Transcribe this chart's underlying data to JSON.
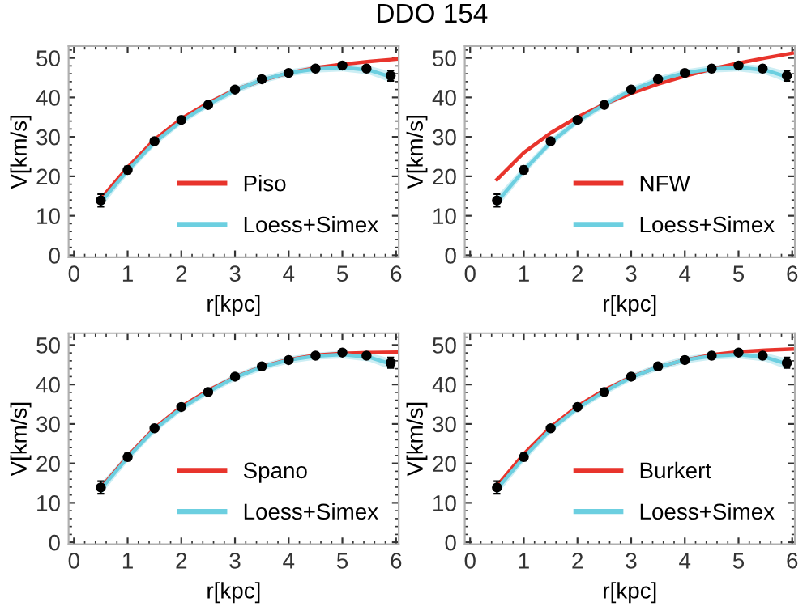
{
  "chart_data": [
    {
      "type": "line",
      "title": "DDO 154",
      "xlabel": "r[kpc]",
      "ylabel": "V[km/s]",
      "xlim": [
        -0.1,
        6.05
      ],
      "ylim": [
        -0.5,
        53
      ],
      "xticks": [
        0,
        1,
        2,
        3,
        4,
        5,
        6
      ],
      "yticks": [
        0,
        10,
        20,
        30,
        40,
        50
      ],
      "legend": "bottom right",
      "grid": false,
      "series": [
        {
          "name": "Piso",
          "color": "#e8342c",
          "x": [
            0.5,
            1,
            1.5,
            2,
            2.5,
            3,
            3.5,
            4,
            4.5,
            5,
            5.5,
            6
          ],
          "values": [
            14.3,
            22.3,
            29.3,
            34.6,
            38.6,
            41.9,
            44.3,
            46.2,
            47.5,
            48.4,
            49.1,
            49.7
          ]
        },
        {
          "type": "line",
          "name": "Loess+Simex",
          "color": "#6ccfe0",
          "x": [
            0.5,
            1,
            1.5,
            2,
            2.5,
            3,
            3.5,
            4,
            4.5,
            5,
            5.5,
            5.9
          ],
          "values": [
            13.5,
            21.5,
            28.6,
            34.0,
            38.2,
            41.8,
            44.4,
            46.2,
            47.2,
            47.6,
            46.9,
            45.2
          ],
          "lower": [
            12.0,
            20.4,
            27.6,
            33.1,
            37.3,
            40.9,
            43.5,
            45.3,
            46.3,
            46.6,
            45.8,
            43.8
          ],
          "upper": [
            15.0,
            22.6,
            29.6,
            34.9,
            39.1,
            42.7,
            45.3,
            47.1,
            48.1,
            48.6,
            48.0,
            46.6
          ]
        },
        {
          "type": "scatter",
          "color": "#000000",
          "marker": "circle",
          "x": [
            0.5,
            1,
            1.5,
            2,
            2.5,
            3,
            3.5,
            4,
            4.5,
            5,
            5.45,
            5.9
          ],
          "values": [
            13.9,
            21.6,
            28.9,
            34.3,
            38.1,
            42.0,
            44.6,
            46.2,
            47.3,
            48.1,
            47.3,
            45.5
          ],
          "errors": [
            1.6,
            0.9,
            0.6,
            0.6,
            0.6,
            0.6,
            0.6,
            0.6,
            0.6,
            0.6,
            0.7,
            1.3
          ]
        }
      ]
    },
    {
      "type": "line",
      "xlabel": "r[kpc]",
      "ylabel": "V[km/s]",
      "xlim": [
        -0.1,
        6.05
      ],
      "ylim": [
        -0.5,
        53
      ],
      "xticks": [
        0,
        1,
        2,
        3,
        4,
        5,
        6
      ],
      "yticks": [
        0,
        10,
        20,
        30,
        40,
        50
      ],
      "legend": "bottom right",
      "grid": false,
      "series": [
        {
          "name": "NFW",
          "color": "#e8342c",
          "x": [
            0.5,
            1,
            1.5,
            2,
            2.5,
            3,
            3.5,
            4,
            4.5,
            5,
            5.5,
            6
          ],
          "values": [
            19.2,
            26.0,
            31.0,
            35.0,
            38.3,
            41.0,
            43.4,
            45.4,
            47.2,
            48.7,
            50.0,
            51.2
          ]
        },
        {
          "type": "line",
          "name": "Loess+Simex",
          "color": "#6ccfe0",
          "x": [
            0.5,
            1,
            1.5,
            2,
            2.5,
            3,
            3.5,
            4,
            4.5,
            5,
            5.5,
            5.9
          ],
          "values": [
            13.5,
            21.5,
            28.6,
            34.0,
            38.2,
            41.8,
            44.4,
            46.2,
            47.2,
            47.6,
            46.9,
            45.2
          ],
          "lower": [
            12.0,
            20.4,
            27.6,
            33.1,
            37.3,
            40.9,
            43.5,
            45.3,
            46.3,
            46.6,
            45.8,
            43.8
          ],
          "upper": [
            15.0,
            22.6,
            29.6,
            34.9,
            39.1,
            42.7,
            45.3,
            47.1,
            48.1,
            48.6,
            48.0,
            46.6
          ]
        },
        {
          "type": "scatter",
          "color": "#000000",
          "marker": "circle",
          "x": [
            0.5,
            1,
            1.5,
            2,
            2.5,
            3,
            3.5,
            4,
            4.5,
            5,
            5.45,
            5.9
          ],
          "values": [
            13.9,
            21.6,
            28.9,
            34.3,
            38.1,
            42.0,
            44.6,
            46.2,
            47.3,
            48.1,
            47.3,
            45.5
          ],
          "errors": [
            1.6,
            0.9,
            0.6,
            0.6,
            0.6,
            0.6,
            0.6,
            0.6,
            0.6,
            0.6,
            0.7,
            1.3
          ]
        }
      ]
    },
    {
      "type": "line",
      "xlabel": "r[kpc]",
      "ylabel": "V[km/s]",
      "xlim": [
        -0.1,
        6.05
      ],
      "ylim": [
        -0.5,
        53
      ],
      "xticks": [
        0,
        1,
        2,
        3,
        4,
        5,
        6
      ],
      "yticks": [
        0,
        10,
        20,
        30,
        40,
        50
      ],
      "legend": "bottom right",
      "grid": false,
      "series": [
        {
          "name": "Spano",
          "color": "#e8342c",
          "x": [
            0.5,
            1,
            1.5,
            2,
            2.5,
            3,
            3.5,
            4,
            4.5,
            5,
            5.5,
            6
          ],
          "values": [
            13.8,
            21.8,
            28.9,
            34.4,
            38.5,
            41.9,
            44.5,
            46.3,
            47.4,
            47.9,
            48.1,
            48.2
          ]
        },
        {
          "type": "line",
          "name": "Loess+Simex",
          "color": "#6ccfe0",
          "x": [
            0.5,
            1,
            1.5,
            2,
            2.5,
            3,
            3.5,
            4,
            4.5,
            5,
            5.5,
            5.9
          ],
          "values": [
            13.5,
            21.5,
            28.6,
            34.0,
            38.2,
            41.8,
            44.4,
            46.2,
            47.2,
            47.6,
            46.9,
            45.2
          ],
          "lower": [
            12.0,
            20.4,
            27.6,
            33.1,
            37.3,
            40.9,
            43.5,
            45.3,
            46.3,
            46.6,
            45.8,
            43.8
          ],
          "upper": [
            15.0,
            22.6,
            29.6,
            34.9,
            39.1,
            42.7,
            45.3,
            47.1,
            48.1,
            48.6,
            48.0,
            46.6
          ]
        },
        {
          "type": "scatter",
          "color": "#000000",
          "marker": "circle",
          "x": [
            0.5,
            1,
            1.5,
            2,
            2.5,
            3,
            3.5,
            4,
            4.5,
            5,
            5.45,
            5.9
          ],
          "values": [
            13.9,
            21.6,
            28.9,
            34.3,
            38.1,
            42.0,
            44.6,
            46.2,
            47.3,
            48.1,
            47.3,
            45.5
          ],
          "errors": [
            1.6,
            0.9,
            0.6,
            0.6,
            0.6,
            0.6,
            0.6,
            0.6,
            0.6,
            0.6,
            0.7,
            1.3
          ]
        }
      ]
    },
    {
      "type": "line",
      "xlabel": "r[kpc]",
      "ylabel": "V[km/s]",
      "xlim": [
        -0.1,
        6.05
      ],
      "ylim": [
        -0.5,
        53
      ],
      "xticks": [
        0,
        1,
        2,
        3,
        4,
        5,
        6
      ],
      "yticks": [
        0,
        10,
        20,
        30,
        40,
        50
      ],
      "legend": "bottom right",
      "grid": false,
      "series": [
        {
          "name": "Burkert",
          "color": "#e8342c",
          "x": [
            0.5,
            1,
            1.5,
            2,
            2.5,
            3,
            3.5,
            4,
            4.5,
            5,
            5.5,
            6
          ],
          "values": [
            14.3,
            22.4,
            29.2,
            34.5,
            38.6,
            41.9,
            44.4,
            46.2,
            47.5,
            48.3,
            48.7,
            49.0
          ]
        },
        {
          "type": "line",
          "name": "Loess+Simex",
          "color": "#6ccfe0",
          "x": [
            0.5,
            1,
            1.5,
            2,
            2.5,
            3,
            3.5,
            4,
            4.5,
            5,
            5.5,
            5.9
          ],
          "values": [
            13.5,
            21.5,
            28.6,
            34.0,
            38.2,
            41.8,
            44.4,
            46.2,
            47.2,
            47.6,
            46.9,
            45.2
          ],
          "lower": [
            12.0,
            20.4,
            27.6,
            33.1,
            37.3,
            40.9,
            43.5,
            45.3,
            46.3,
            46.6,
            45.8,
            43.8
          ],
          "upper": [
            15.0,
            22.6,
            29.6,
            34.9,
            39.1,
            42.7,
            45.3,
            47.1,
            48.1,
            48.6,
            48.0,
            46.6
          ]
        },
        {
          "type": "scatter",
          "color": "#000000",
          "marker": "circle",
          "x": [
            0.5,
            1,
            1.5,
            2,
            2.5,
            3,
            3.5,
            4,
            4.5,
            5,
            5.45,
            5.9
          ],
          "values": [
            13.9,
            21.6,
            28.9,
            34.3,
            38.1,
            42.0,
            44.6,
            46.2,
            47.3,
            48.1,
            47.3,
            45.5
          ],
          "errors": [
            1.6,
            0.9,
            0.6,
            0.6,
            0.6,
            0.6,
            0.6,
            0.6,
            0.6,
            0.6,
            0.7,
            1.3
          ]
        }
      ]
    }
  ]
}
